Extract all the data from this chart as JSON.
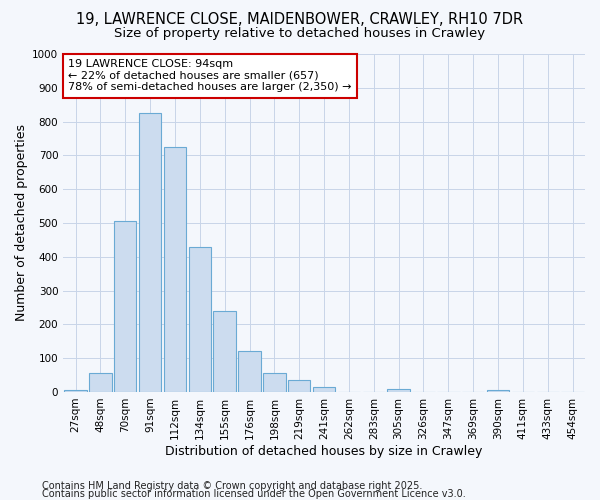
{
  "title_line1": "19, LAWRENCE CLOSE, MAIDENBOWER, CRAWLEY, RH10 7DR",
  "title_line2": "Size of property relative to detached houses in Crawley",
  "xlabel": "Distribution of detached houses by size in Crawley",
  "ylabel": "Number of detached properties",
  "categories": [
    "27sqm",
    "48sqm",
    "70sqm",
    "91sqm",
    "112sqm",
    "134sqm",
    "155sqm",
    "176sqm",
    "198sqm",
    "219sqm",
    "241sqm",
    "262sqm",
    "283sqm",
    "305sqm",
    "326sqm",
    "347sqm",
    "369sqm",
    "390sqm",
    "411sqm",
    "433sqm",
    "454sqm"
  ],
  "values": [
    5,
    55,
    505,
    825,
    725,
    430,
    240,
    120,
    55,
    35,
    15,
    0,
    0,
    10,
    0,
    0,
    0,
    5,
    0,
    0,
    0
  ],
  "bar_color": "#ccdcef",
  "bar_edge_color": "#6aaad4",
  "annotation_title": "19 LAWRENCE CLOSE: 94sqm",
  "annotation_line2": "← 22% of detached houses are smaller (657)",
  "annotation_line3": "78% of semi-detached houses are larger (2,350) →",
  "annotation_box_color": "#ffffff",
  "annotation_box_edge": "#cc0000",
  "ylim": [
    0,
    1000
  ],
  "yticks": [
    0,
    100,
    200,
    300,
    400,
    500,
    600,
    700,
    800,
    900,
    1000
  ],
  "grid_color": "#c8d4e8",
  "background_color": "#f4f7fc",
  "footer_line1": "Contains HM Land Registry data © Crown copyright and database right 2025.",
  "footer_line2": "Contains public sector information licensed under the Open Government Licence v3.0.",
  "title_fontsize": 10.5,
  "subtitle_fontsize": 9.5,
  "axis_label_fontsize": 9,
  "tick_fontsize": 7.5,
  "annotation_fontsize": 8,
  "footer_fontsize": 7
}
